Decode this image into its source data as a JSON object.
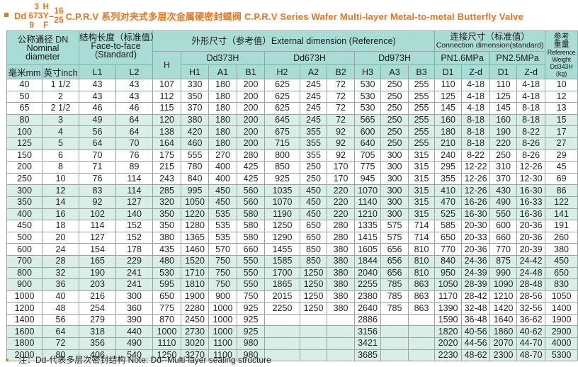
{
  "title": {
    "prefix": "Dd",
    "series_top": "3",
    "series_mid": "673",
    "series_bot": "9",
    "seal_top": "H",
    "seal_mid": "Y",
    "seal_bot": "F",
    "dash": "–",
    "pn_top": "16",
    "pn_bot": "25",
    "main": "C.P.R.V 系列对夹式多层次金属硬密封蝶阀 C.P.R.V Series Wafer Multi-layer Metal-to-metal Butterfly Valve"
  },
  "header": {
    "nominal_cn": "公称通径 DN",
    "nominal_en1": "Nominal",
    "nominal_en2": "diameter",
    "f2f_cn": "结构长度（标准值）",
    "f2f_en1": "Face-to-face",
    "f2f_en2": "(Standard)",
    "ext": "外形尺寸（参考值）External dimension (Reference)",
    "conn_cn": "连接尺寸（标准值）",
    "conn_en": "Connection dimension(standard)",
    "weight_cn1": "参考",
    "weight_cn2": "重量",
    "weight_en1": "Reference",
    "weight_en2": "Weight",
    "weight_en3": "Dd343H",
    "weight_unit": "(kg)",
    "H": "H",
    "dd373": "Dd373H",
    "dd673": "Dd673H",
    "dd973": "Dd973H",
    "pn16": "PN1.6MPa",
    "pn25": "PN2.5MPa",
    "mm": "毫米mm",
    "inch": "英寸inch",
    "L1": "L1",
    "L2": "L2",
    "H1": "H1",
    "A1": "A1",
    "B1": "B1",
    "H2": "H2",
    "A2": "A2",
    "B2": "B2",
    "H3": "H3",
    "A3": "A3",
    "B3": "B3",
    "D1a": "D1",
    "Zda": "Z-d",
    "D1b": "D1",
    "Zdb": "Z-d"
  },
  "rows": [
    [
      "40",
      "1 1/2",
      "43",
      "43",
      "107",
      "330",
      "180",
      "200",
      "625",
      "245",
      "72",
      "530",
      "250",
      "255",
      "110",
      "4-18",
      "110",
      "4-18",
      "10"
    ],
    [
      "50",
      "2",
      "43",
      "43",
      "112",
      "350",
      "180",
      "200",
      "625",
      "245",
      "72",
      "530",
      "250",
      "255",
      "125",
      "4-18",
      "125",
      "4-18",
      "12"
    ],
    [
      "65",
      "2 1/2",
      "46",
      "46",
      "115",
      "370",
      "180",
      "200",
      "625",
      "245",
      "72",
      "530",
      "250",
      "255",
      "145",
      "4-18",
      "145",
      "8-18",
      "13"
    ],
    [
      "80",
      "3",
      "49",
      "64",
      "120",
      "380",
      "180",
      "200",
      "645",
      "245",
      "72",
      "565",
      "250",
      "255",
      "160",
      "8-18",
      "160",
      "8-18",
      "15"
    ],
    [
      "100",
      "4",
      "56",
      "64",
      "138",
      "420",
      "180",
      "200",
      "675",
      "355",
      "92",
      "600",
      "250",
      "255",
      "180",
      "8-18",
      "190",
      "8-22",
      "17"
    ],
    [
      "125",
      "5",
      "64",
      "70",
      "164",
      "460",
      "180",
      "200",
      "715",
      "355",
      "92",
      "640",
      "250",
      "255",
      "210",
      "8-18",
      "220",
      "8-26",
      "27"
    ],
    [
      "150",
      "6",
      "70",
      "76",
      "175",
      "555",
      "270",
      "280",
      "800",
      "355",
      "92",
      "705",
      "300",
      "315",
      "240",
      "8-22",
      "250",
      "8-26",
      "29"
    ],
    [
      "200",
      "8",
      "71",
      "89",
      "215",
      "780",
      "400",
      "425",
      "850",
      "250",
      "170",
      "775",
      "300",
      "315",
      "295",
      "12-22",
      "310",
      "12-26",
      "45"
    ],
    [
      "250",
      "10",
      "76",
      "114",
      "243",
      "840",
      "400",
      "425",
      "925",
      "250",
      "170",
      "945",
      "300",
      "315",
      "355",
      "12-26",
      "370",
      "12-30",
      "69"
    ],
    [
      "300",
      "12",
      "83",
      "114",
      "285",
      "995",
      "450",
      "560",
      "1035",
      "450",
      "220",
      "1070",
      "300",
      "315",
      "410",
      "12-26",
      "430",
      "16-30",
      "86"
    ],
    [
      "350",
      "14",
      "92",
      "127",
      "320",
      "1050",
      "450",
      "560",
      "1070",
      "450",
      "220",
      "1140",
      "300",
      "315",
      "470",
      "16-26",
      "490",
      "16-33",
      "122"
    ],
    [
      "400",
      "16",
      "102",
      "140",
      "350",
      "1220",
      "535",
      "580",
      "1190",
      "450",
      "220",
      "1210",
      "300",
      "315",
      "525",
      "16-30",
      "550",
      "16-36",
      "141"
    ],
    [
      "450",
      "18",
      "114",
      "152",
      "350",
      "1280",
      "535",
      "580",
      "1250",
      "650",
      "280",
      "1335",
      "575",
      "714",
      "585",
      "20-30",
      "600",
      "20-36",
      "191"
    ],
    [
      "500",
      "20",
      "127",
      "152",
      "380",
      "1365",
      "535",
      "580",
      "1290",
      "650",
      "280",
      "1415",
      "575",
      "714",
      "650",
      "20-33",
      "660",
      "20-36",
      "260"
    ],
    [
      "600",
      "24",
      "154",
      "178",
      "435",
      "1460",
      "570",
      "660",
      "1455",
      "850",
      "380",
      "1605",
      "656",
      "810",
      "770",
      "20-36",
      "770",
      "20-39",
      "380"
    ],
    [
      "700",
      "28",
      "165",
      "229",
      "480",
      "1520",
      "750",
      "550",
      "1585",
      "850",
      "380",
      "1844",
      "656",
      "810",
      "840",
      "24-36",
      "875",
      "24-42",
      "450"
    ],
    [
      "800",
      "32",
      "190",
      "241",
      "530",
      "1710",
      "750",
      "550",
      "1700",
      "1250",
      "380",
      "2040",
      "656",
      "810",
      "950",
      "24-39",
      "990",
      "24-48",
      "650"
    ],
    [
      "900",
      "36",
      "203",
      "241",
      "595",
      "1810",
      "750",
      "550",
      "1865",
      "1250",
      "380",
      "2255",
      "785",
      "863",
      "1050",
      "28-39",
      "1090",
      "28-48",
      "830"
    ],
    [
      "1000",
      "40",
      "216",
      "300",
      "650",
      "1900",
      "900",
      "750",
      "2015",
      "1250",
      "380",
      "2380",
      "785",
      "863",
      "1170",
      "28-42",
      "1210",
      "28-56",
      "1050"
    ],
    [
      "1200",
      "48",
      "254",
      "360",
      "775",
      "2280",
      "1000",
      "925",
      "2250",
      "1250",
      "380",
      "2640",
      "785",
      "863",
      "1390",
      "32-48",
      "1420",
      "32-56",
      "1400"
    ],
    [
      "1400",
      "56",
      "279",
      "390",
      "870",
      "2450",
      "1000",
      "925",
      "",
      "",
      "",
      "2886",
      "",
      "",
      "1590",
      "36-48",
      "1640",
      "36-62",
      "1900"
    ],
    [
      "1600",
      "64",
      "318",
      "440",
      "1000",
      "2730",
      "1000",
      "925",
      "",
      "",
      "",
      "3156",
      "",
      "",
      "1820",
      "40-56",
      "1860",
      "40-62",
      "2900"
    ],
    [
      "1800",
      "72",
      "356",
      "490",
      "1110",
      "3020",
      "1100",
      "980",
      "",
      "",
      "",
      "3421",
      "",
      "",
      "2020",
      "44-56",
      "2070",
      "44-70",
      "4000"
    ],
    [
      "2000",
      "80",
      "406",
      "540",
      "1250",
      "3270",
      "1100",
      "980",
      "",
      "",
      "",
      "3685",
      "",
      "",
      "2230",
      "48-62",
      "2300",
      "48-70",
      "5300"
    ]
  ],
  "row_groups": [
    "w",
    "w",
    "w",
    "g",
    "g",
    "g",
    "w",
    "w",
    "w",
    "g",
    "g",
    "g",
    "w",
    "w",
    "w",
    "g",
    "g",
    "g",
    "w",
    "w",
    "w",
    "g",
    "g",
    "g"
  ],
  "note": "注：Dd-代表多层次密封结构 Note: Dd--Multi-layer sealing structure",
  "colors": {
    "accent": "#e8761c",
    "header": "#a9dcd4",
    "band": "#d8eee7"
  }
}
